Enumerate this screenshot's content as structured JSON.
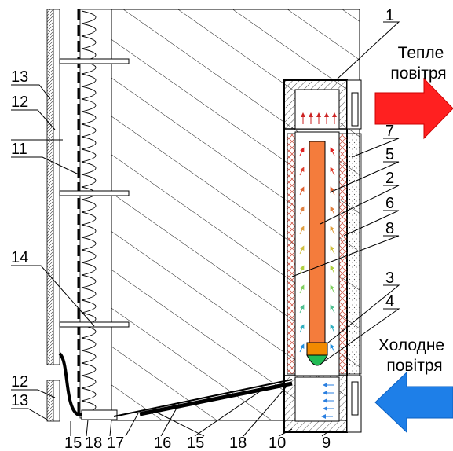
{
  "labels": {
    "n1": "1",
    "n2": "2",
    "n3": "3",
    "n4": "4",
    "n5": "5",
    "n6": "6",
    "n7": "7",
    "n8": "8",
    "n9": "9",
    "n10": "10",
    "n11": "11",
    "n12a": "12",
    "n12b": "12",
    "n13a": "13",
    "n13b": "13",
    "n14": "14",
    "n15a": "15",
    "n15b": "15",
    "n16": "16",
    "n17": "17",
    "n18a": "18",
    "n18b": "18"
  },
  "captions": {
    "warm_line1": "Тепле",
    "warm_line2": "повітря",
    "cold_line1": "Холодне",
    "cold_line2": "повітря"
  },
  "colors": {
    "warm_arrow": "#ff2020",
    "cold_arrow": "#1e7fe8",
    "heater": "#f47c3c",
    "heater_base": "#f28a00",
    "heater_bulb": "#22bb55"
  },
  "icons": {
    "warm_arrow": "right-arrow-icon",
    "cold_arrow": "left-arrow-icon"
  }
}
